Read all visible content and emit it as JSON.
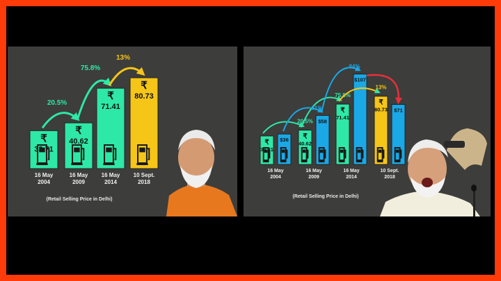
{
  "colors": {
    "frame_border": "#ff3b0a",
    "panel_bg": "#3d3d3b",
    "petrol_bar": "#2ee8a8",
    "crude_bar": "#1aa8e6",
    "latest_bar": "#f5c518",
    "growth_arrow": "#2ee8a8",
    "crude_arrow": "#1aa8e6",
    "drop_arrow": "#f5c518",
    "red_arrow": "#e8303a"
  },
  "chart_data": [
    {
      "type": "bar",
      "title": "",
      "note": "(Retail Selling Price in Delhi)",
      "categories": [
        [
          "16 May",
          "2004"
        ],
        [
          "16 May",
          "2009"
        ],
        [
          "16 May",
          "2014"
        ],
        [
          "10 Sept.",
          "2018"
        ]
      ],
      "currency_symbol": "₹",
      "values": [
        33.71,
        40.62,
        71.41,
        80.73
      ],
      "value_labels": [
        "33.71",
        "40.62",
        "71.41",
        "80.73"
      ],
      "changes": [
        "20.5%",
        "75.8%",
        "13%"
      ],
      "ylim": [
        0,
        90
      ],
      "grid": false,
      "legend": "none"
    },
    {
      "type": "bar",
      "title": "",
      "note": "(Retail Selling Price in Delhi)",
      "categories": [
        [
          "16 May",
          "2004"
        ],
        [
          "16 May",
          "2009"
        ],
        [
          "16 May",
          "2014"
        ],
        [
          "10 Sept.",
          "2018"
        ]
      ],
      "currency_symbol": "₹",
      "series": [
        {
          "values": [
            33.71,
            40.62,
            71.41,
            80.73
          ],
          "value_labels": [
            "33.71",
            "40.62",
            "71.41",
            "80.73"
          ],
          "changes": [
            "20.5%",
            "75.8%",
            "13%"
          ]
        },
        {
          "values": [
            36,
            58,
            107,
            71
          ],
          "value_labels": [
            "$36",
            "$58",
            "$107",
            "$71"
          ],
          "changes": [
            "61%",
            "84%"
          ]
        }
      ],
      "ylim": [
        0,
        115
      ],
      "grid": false,
      "legend": "none"
    }
  ]
}
